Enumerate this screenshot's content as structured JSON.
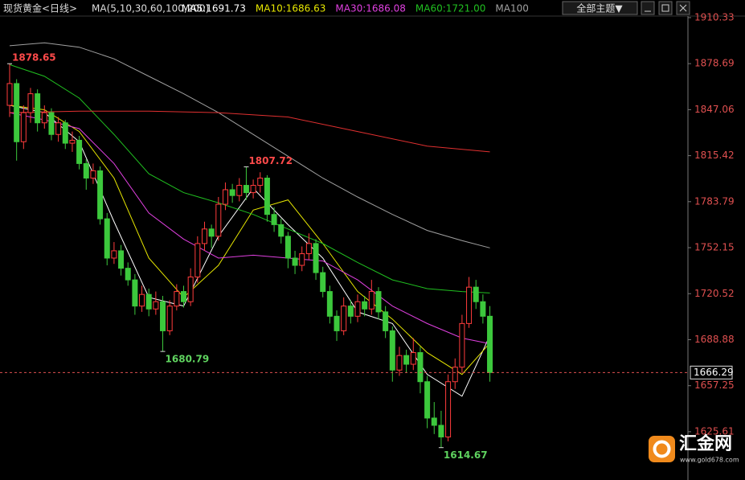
{
  "header": {
    "symbol": "现货黄金<日线>",
    "ma_set": "MA(5,10,30,60,100,200)",
    "theme_button": "全部主题▼"
  },
  "logo": {
    "name": "汇金网",
    "url": "www.gold678.com"
  },
  "chart_data": {
    "type": "candlestick",
    "open": [
      1850,
      1865,
      1825,
      1845,
      1858,
      1838,
      1845,
      1830,
      1838,
      1824,
      1826,
      1810,
      1800,
      1805,
      1772,
      1745,
      1750,
      1738,
      1730,
      1712,
      1720,
      1710,
      1715,
      1695,
      1712,
      1722,
      1715,
      1732,
      1755,
      1765,
      1760,
      1782,
      1792,
      1788,
      1795,
      1790,
      1795,
      1800,
      1775,
      1768,
      1760,
      1745,
      1740,
      1748,
      1755,
      1735,
      1722,
      1705,
      1695,
      1712,
      1705,
      1715,
      1710,
      1722,
      1708,
      1695,
      1668,
      1678,
      1672,
      1680,
      1660,
      1635,
      1630,
      1622,
      1660,
      1670,
      1700,
      1725,
      1715,
      1705
    ],
    "high": [
      1878.65,
      1868,
      1850,
      1862,
      1861,
      1850,
      1848,
      1842,
      1840,
      1832,
      1829,
      1813,
      1810,
      1808,
      1776,
      1756,
      1754,
      1742,
      1734,
      1726,
      1724,
      1722,
      1719,
      1716,
      1727,
      1726,
      1738,
      1760,
      1770,
      1768,
      1787,
      1797,
      1796,
      1800,
      1807.72,
      1799,
      1804,
      1802,
      1780,
      1772,
      1763,
      1750,
      1753,
      1762,
      1758,
      1739,
      1726,
      1709,
      1718,
      1716,
      1720,
      1719,
      1730,
      1725,
      1712,
      1698,
      1684,
      1682,
      1690,
      1684,
      1664,
      1646,
      1640,
      1665,
      1676,
      1706,
      1732,
      1730,
      1720,
      1712
    ],
    "low": [
      1842,
      1812,
      1820,
      1838,
      1832,
      1834,
      1826,
      1825,
      1820,
      1818,
      1806,
      1792,
      1796,
      1768,
      1740,
      1741,
      1733,
      1726,
      1706,
      1708,
      1705,
      1706,
      1680.79,
      1692,
      1709,
      1711,
      1712,
      1728,
      1750,
      1752,
      1757,
      1778,
      1783,
      1784,
      1785,
      1786,
      1790,
      1770,
      1763,
      1755,
      1738,
      1734,
      1736,
      1744,
      1730,
      1718,
      1700,
      1688,
      1692,
      1700,
      1701,
      1705,
      1706,
      1703,
      1690,
      1660,
      1664,
      1666,
      1668,
      1652,
      1628,
      1624,
      1614.67,
      1619,
      1655,
      1666,
      1697,
      1710,
      1700,
      1660
    ],
    "close": [
      1865,
      1825,
      1845,
      1858,
      1838,
      1845,
      1830,
      1838,
      1824,
      1826,
      1810,
      1800,
      1805,
      1772,
      1745,
      1750,
      1738,
      1730,
      1712,
      1720,
      1710,
      1715,
      1695,
      1712,
      1722,
      1715,
      1732,
      1755,
      1765,
      1760,
      1782,
      1792,
      1788,
      1795,
      1790,
      1795,
      1800,
      1775,
      1768,
      1760,
      1745,
      1740,
      1748,
      1755,
      1735,
      1722,
      1705,
      1695,
      1712,
      1705,
      1715,
      1710,
      1722,
      1708,
      1695,
      1668,
      1678,
      1672,
      1680,
      1660,
      1635,
      1630,
      1622,
      1660,
      1670,
      1700,
      1725,
      1715,
      1705,
      1666.29
    ],
    "up_color": "#ff3c3c",
    "down_color": "#3cc83c",
    "ma_series": [
      {
        "label": "MA5:1691.73",
        "color": "#ffffff",
        "x": [
          0,
          5,
          10,
          15,
          20,
          25,
          30,
          35,
          40,
          45,
          50,
          55,
          60,
          65,
          69
        ],
        "values": [
          1850,
          1845,
          1825,
          1770,
          1718,
          1712,
          1760,
          1793,
          1768,
          1745,
          1708,
          1700,
          1665,
          1650,
          1691.73
        ]
      },
      {
        "label": "MA10:1686.63",
        "color": "#e6e600",
        "x": [
          0,
          5,
          10,
          15,
          20,
          25,
          30,
          35,
          40,
          45,
          50,
          55,
          60,
          65,
          69
        ],
        "values": [
          1850,
          1847,
          1832,
          1800,
          1745,
          1718,
          1740,
          1778,
          1785,
          1755,
          1722,
          1703,
          1680,
          1665,
          1686.63
        ]
      },
      {
        "label": "MA30:1686.08",
        "color": "#e040e0",
        "x": [
          0,
          5,
          10,
          15,
          20,
          25,
          30,
          35,
          40,
          45,
          50,
          55,
          60,
          65,
          69
        ],
        "values": [
          1845,
          1840,
          1834,
          1810,
          1776,
          1758,
          1745,
          1747,
          1745,
          1743,
          1730,
          1712,
          1700,
          1690,
          1686.08
        ]
      },
      {
        "label": "MA60:1721.00",
        "color": "#20c020",
        "x": [
          0,
          5,
          10,
          15,
          20,
          25,
          30,
          35,
          40,
          45,
          50,
          55,
          60,
          65,
          69
        ],
        "values": [
          1878,
          1870,
          1855,
          1830,
          1803,
          1790,
          1783,
          1775,
          1765,
          1755,
          1742,
          1730,
          1724,
          1722,
          1721
        ]
      },
      {
        "label": "MA100",
        "color": "#a0a0a0",
        "x": [
          0,
          5,
          10,
          15,
          20,
          25,
          30,
          35,
          40,
          45,
          50,
          55,
          60,
          65,
          69
        ],
        "values": [
          1891,
          1893,
          1890,
          1882,
          1870,
          1858,
          1845,
          1830,
          1815,
          1800,
          1787,
          1775,
          1764,
          1757,
          1752
        ]
      },
      {
        "color": "#e03030",
        "x": [
          0,
          10,
          20,
          30,
          40,
          50,
          60,
          69
        ],
        "values": [
          1845,
          1846,
          1846,
          1845,
          1842,
          1832,
          1822,
          1818
        ]
      }
    ],
    "ylim": [
      1592.4,
      1912.5
    ],
    "yticks": [
      1910.33,
      1878.69,
      1847.06,
      1815.42,
      1783.79,
      1752.15,
      1720.52,
      1688.88,
      1657.25,
      1625.61
    ],
    "extreme_labels": [
      {
        "series": "high",
        "index": 0
      },
      {
        "series": "high",
        "index": 34
      },
      {
        "series": "low",
        "index": 22
      },
      {
        "series": "low",
        "index": 62
      }
    ],
    "last_price_index": 69
  }
}
